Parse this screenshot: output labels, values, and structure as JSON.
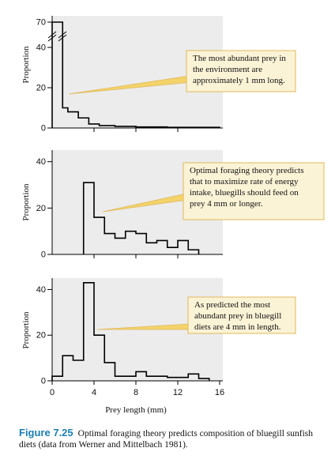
{
  "figure": {
    "number": "Figure 7.25",
    "caption": "Optimal foraging theory predicts composition of bluegill sunfish diets (data from Werner and Mittelbach 1981)."
  },
  "colors": {
    "plot_bg": "#ececec",
    "callout_fill": "#fbf3d6",
    "callout_border": "#e0b85a",
    "pointer_fill": "#f3d36a",
    "step_line": "#000000",
    "figure_number": "#1b7fb3"
  },
  "chart_data": [
    {
      "type": "histogram-step",
      "panel": "top",
      "title": "",
      "xlabel": "",
      "ylabel": "Proportion",
      "xlim": [
        0,
        16
      ],
      "ylim": [
        0,
        75
      ],
      "axis_break": true,
      "yticks": [
        {
          "value": 0,
          "label": "0"
        },
        {
          "value": 20,
          "label": "20"
        },
        {
          "value": 40,
          "label": "40"
        },
        {
          "value": 70,
          "label": "70"
        }
      ],
      "bins": [
        {
          "x0": 0,
          "x1": 1,
          "value": 70
        },
        {
          "x0": 1,
          "x1": 1.5,
          "value": 10
        },
        {
          "x0": 1.5,
          "x1": 2.5,
          "value": 8
        },
        {
          "x0": 2.5,
          "x1": 3.5,
          "value": 5
        },
        {
          "x0": 3.5,
          "x1": 4.5,
          "value": 2
        },
        {
          "x0": 4.5,
          "x1": 6,
          "value": 1.2
        },
        {
          "x0": 6,
          "x1": 8,
          "value": 0.8
        },
        {
          "x0": 8,
          "x1": 11,
          "value": 0.5
        },
        {
          "x0": 11,
          "x1": 16,
          "value": 0.3
        }
      ],
      "annotation": "The most abundant prey in the environment are approximately 1 mm long."
    },
    {
      "type": "histogram-step",
      "panel": "middle",
      "title": "",
      "xlabel": "",
      "ylabel": "Proportion",
      "xlim": [
        0,
        16
      ],
      "ylim": [
        0,
        45
      ],
      "yticks": [
        {
          "value": 0,
          "label": "0"
        },
        {
          "value": 20,
          "label": "20"
        },
        {
          "value": 40,
          "label": "40"
        }
      ],
      "bins": [
        {
          "x0": 3,
          "x1": 4,
          "value": 31
        },
        {
          "x0": 4,
          "x1": 5,
          "value": 16
        },
        {
          "x0": 5,
          "x1": 6,
          "value": 9
        },
        {
          "x0": 6,
          "x1": 7,
          "value": 7
        },
        {
          "x0": 7,
          "x1": 8,
          "value": 10
        },
        {
          "x0": 8,
          "x1": 9,
          "value": 9
        },
        {
          "x0": 9,
          "x1": 10,
          "value": 5
        },
        {
          "x0": 10,
          "x1": 11,
          "value": 6
        },
        {
          "x0": 11,
          "x1": 12,
          "value": 3
        },
        {
          "x0": 12,
          "x1": 13,
          "value": 6
        },
        {
          "x0": 13,
          "x1": 14,
          "value": 2
        }
      ],
      "annotation": "Optimal foraging theory predicts that to maximize rate of energy intake, bluegills should feed on prey 4 mm or longer."
    },
    {
      "type": "histogram-step",
      "panel": "bottom",
      "title": "",
      "xlabel": "Prey length (mm)",
      "ylabel": "Proportion",
      "xlim": [
        0,
        16
      ],
      "ylim": [
        0,
        45
      ],
      "yticks": [
        {
          "value": 0,
          "label": "0"
        },
        {
          "value": 20,
          "label": "20"
        },
        {
          "value": 40,
          "label": "40"
        }
      ],
      "xticks": [
        {
          "value": 0,
          "label": "0"
        },
        {
          "value": 4,
          "label": "4"
        },
        {
          "value": 8,
          "label": "8"
        },
        {
          "value": 12,
          "label": "12"
        },
        {
          "value": 16,
          "label": "16"
        }
      ],
      "bins": [
        {
          "x0": 0,
          "x1": 1,
          "value": 2
        },
        {
          "x0": 1,
          "x1": 2,
          "value": 11
        },
        {
          "x0": 2,
          "x1": 3,
          "value": 9
        },
        {
          "x0": 3,
          "x1": 4,
          "value": 43
        },
        {
          "x0": 4,
          "x1": 5,
          "value": 20
        },
        {
          "x0": 5,
          "x1": 6,
          "value": 8
        },
        {
          "x0": 6,
          "x1": 7,
          "value": 2
        },
        {
          "x0": 7,
          "x1": 8,
          "value": 2
        },
        {
          "x0": 8,
          "x1": 9,
          "value": 4
        },
        {
          "x0": 9,
          "x1": 11,
          "value": 2
        },
        {
          "x0": 11,
          "x1": 13,
          "value": 1.5
        },
        {
          "x0": 13,
          "x1": 14,
          "value": 3
        },
        {
          "x0": 14,
          "x1": 15,
          "value": 1
        }
      ],
      "annotation": "As predicted the most abundant prey in bluegill diets are 4 mm in length."
    }
  ]
}
